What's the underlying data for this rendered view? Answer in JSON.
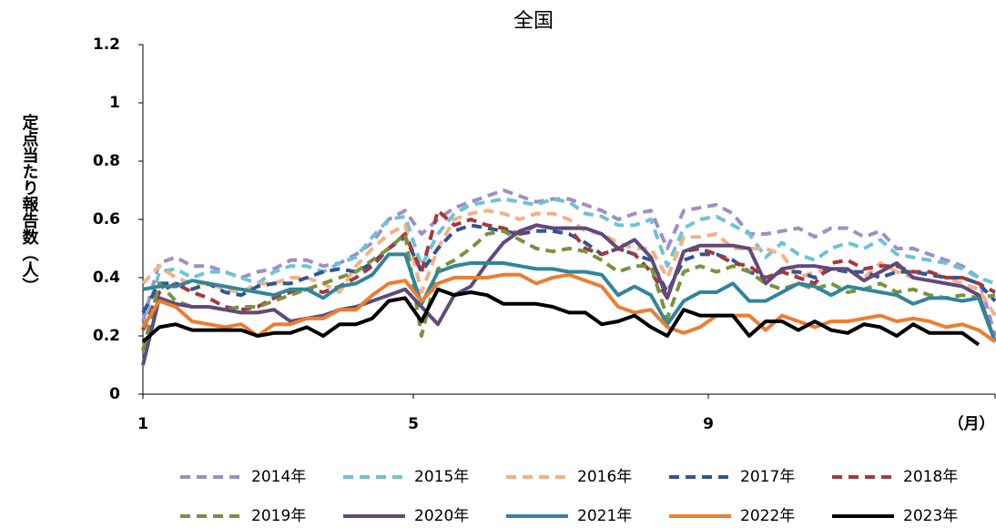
{
  "chart_data": {
    "type": "line",
    "title": "全国",
    "y_label": "定点当たり報告数（人）",
    "x": [
      1,
      2,
      3,
      4,
      5,
      6,
      7,
      8,
      9,
      10,
      11,
      12,
      13,
      14,
      15,
      16,
      17,
      18,
      19,
      20,
      21,
      22,
      23,
      24,
      25,
      26,
      27,
      28,
      29,
      30,
      31,
      32,
      33,
      34,
      35,
      36,
      37,
      38,
      39,
      40,
      41,
      42,
      43,
      44,
      45,
      46,
      47,
      48,
      49,
      50,
      51,
      52,
      53
    ],
    "xlim": [
      1,
      53
    ],
    "xticks": [
      {
        "value": 1,
        "label": "1"
      },
      {
        "value": 17.5,
        "label": "5"
      },
      {
        "value": 35.5,
        "label": "9"
      },
      {
        "value": 53,
        "label": "（月）"
      }
    ],
    "ylim": [
      0,
      1.2
    ],
    "yticks": [
      0,
      0.2,
      0.4,
      0.6,
      0.8,
      1,
      1.2
    ],
    "grid": false,
    "series": [
      {
        "name": "2014年",
        "color": "#9e8fc4",
        "dashed": true,
        "values": [
          0.25,
          0.45,
          0.47,
          0.44,
          0.44,
          0.42,
          0.4,
          0.42,
          0.43,
          0.46,
          0.46,
          0.44,
          0.45,
          0.48,
          0.52,
          0.6,
          0.63,
          0.55,
          0.6,
          0.64,
          0.66,
          0.68,
          0.7,
          0.68,
          0.66,
          0.67,
          0.67,
          0.65,
          0.63,
          0.6,
          0.62,
          0.63,
          0.5,
          0.63,
          0.64,
          0.65,
          0.62,
          0.55,
          0.55,
          0.56,
          0.57,
          0.54,
          0.57,
          0.57,
          0.54,
          0.56,
          0.5,
          0.5,
          0.48,
          0.46,
          0.44,
          0.4,
          0.2
        ]
      },
      {
        "name": "2015年",
        "color": "#6cc3d6",
        "dashed": true,
        "values": [
          0.22,
          0.42,
          0.43,
          0.4,
          0.42,
          0.42,
          0.4,
          0.38,
          0.42,
          0.44,
          0.44,
          0.42,
          0.45,
          0.47,
          0.54,
          0.6,
          0.61,
          0.44,
          0.55,
          0.62,
          0.65,
          0.66,
          0.67,
          0.66,
          0.65,
          0.67,
          0.66,
          0.62,
          0.61,
          0.58,
          0.58,
          0.6,
          0.44,
          0.57,
          0.6,
          0.61,
          0.58,
          0.55,
          0.47,
          0.52,
          0.48,
          0.46,
          0.5,
          0.52,
          0.5,
          0.53,
          0.48,
          0.47,
          0.46,
          0.45,
          0.43,
          0.4,
          0.38
        ]
      },
      {
        "name": "2016年",
        "color": "#f4b183",
        "dashed": true,
        "values": [
          0.38,
          0.44,
          0.4,
          0.38,
          0.38,
          0.36,
          0.35,
          0.38,
          0.38,
          0.4,
          0.4,
          0.38,
          0.35,
          0.44,
          0.5,
          0.55,
          0.58,
          0.35,
          0.5,
          0.6,
          0.62,
          0.63,
          0.62,
          0.6,
          0.62,
          0.62,
          0.6,
          0.56,
          0.55,
          0.52,
          0.5,
          0.5,
          0.4,
          0.54,
          0.54,
          0.55,
          0.5,
          0.5,
          0.5,
          0.48,
          0.4,
          0.42,
          0.43,
          0.43,
          0.4,
          0.45,
          0.42,
          0.4,
          0.42,
          0.4,
          0.38,
          0.36,
          0.27
        ]
      },
      {
        "name": "2017年",
        "color": "#2f5597",
        "dashed": true,
        "values": [
          0.28,
          0.38,
          0.38,
          0.36,
          0.38,
          0.35,
          0.34,
          0.37,
          0.38,
          0.38,
          0.4,
          0.42,
          0.43,
          0.42,
          0.45,
          0.5,
          0.54,
          0.42,
          0.5,
          0.56,
          0.58,
          0.57,
          0.56,
          0.55,
          0.56,
          0.56,
          0.55,
          0.52,
          0.48,
          0.5,
          0.48,
          0.46,
          0.35,
          0.46,
          0.48,
          0.48,
          0.46,
          0.42,
          0.4,
          0.42,
          0.42,
          0.4,
          0.43,
          0.42,
          0.42,
          0.4,
          0.42,
          0.42,
          0.41,
          0.4,
          0.4,
          0.38,
          0.32
        ]
      },
      {
        "name": "2018年",
        "color": "#a5383b",
        "dashed": true,
        "values": [
          0.22,
          0.35,
          0.38,
          0.35,
          0.33,
          0.3,
          0.29,
          0.3,
          0.33,
          0.35,
          0.36,
          0.35,
          0.37,
          0.4,
          0.44,
          0.5,
          0.55,
          0.42,
          0.63,
          0.58,
          0.6,
          0.58,
          0.57,
          0.55,
          0.58,
          0.57,
          0.57,
          0.5,
          0.48,
          0.5,
          0.48,
          0.42,
          0.33,
          0.49,
          0.5,
          0.48,
          0.45,
          0.44,
          0.4,
          0.42,
          0.4,
          0.38,
          0.45,
          0.46,
          0.43,
          0.44,
          0.44,
          0.42,
          0.42,
          0.4,
          0.4,
          0.38,
          0.35
        ]
      },
      {
        "name": "2019年",
        "color": "#77933c",
        "dashed": true,
        "values": [
          0.15,
          0.38,
          0.32,
          0.3,
          0.3,
          0.29,
          0.3,
          0.3,
          0.32,
          0.34,
          0.36,
          0.38,
          0.4,
          0.42,
          0.46,
          0.5,
          0.55,
          0.2,
          0.43,
          0.46,
          0.5,
          0.55,
          0.56,
          0.53,
          0.5,
          0.49,
          0.5,
          0.49,
          0.46,
          0.42,
          0.44,
          0.44,
          0.26,
          0.42,
          0.44,
          0.42,
          0.44,
          0.42,
          0.38,
          0.36,
          0.38,
          0.36,
          0.38,
          0.35,
          0.36,
          0.38,
          0.35,
          0.36,
          0.34,
          0.33,
          0.34,
          0.33,
          0.34
        ]
      },
      {
        "name": "2020年",
        "color": "#604a7b",
        "dashed": false,
        "values": [
          0.1,
          0.33,
          0.31,
          0.3,
          0.3,
          0.29,
          0.28,
          0.28,
          0.29,
          0.25,
          0.26,
          0.27,
          0.29,
          0.3,
          0.32,
          0.34,
          0.36,
          0.3,
          0.24,
          0.34,
          0.37,
          0.45,
          0.52,
          0.56,
          0.58,
          0.57,
          0.57,
          0.57,
          0.55,
          0.5,
          0.53,
          0.47,
          0.33,
          0.49,
          0.51,
          0.51,
          0.51,
          0.5,
          0.38,
          0.43,
          0.44,
          0.44,
          0.43,
          0.43,
          0.39,
          0.42,
          0.45,
          0.4,
          0.39,
          0.38,
          0.37,
          0.34,
          0.18
        ]
      },
      {
        "name": "2021年",
        "color": "#31859c",
        "dashed": false,
        "values": [
          0.36,
          0.37,
          0.37,
          0.39,
          0.38,
          0.37,
          0.36,
          0.35,
          0.34,
          0.36,
          0.36,
          0.33,
          0.37,
          0.38,
          0.41,
          0.48,
          0.48,
          0.31,
          0.42,
          0.44,
          0.45,
          0.45,
          0.45,
          0.44,
          0.43,
          0.43,
          0.42,
          0.42,
          0.41,
          0.34,
          0.37,
          0.34,
          0.24,
          0.32,
          0.35,
          0.35,
          0.38,
          0.32,
          0.32,
          0.35,
          0.38,
          0.37,
          0.34,
          0.37,
          0.36,
          0.35,
          0.34,
          0.31,
          0.33,
          0.33,
          0.32,
          0.33,
          0.18
        ]
      },
      {
        "name": "2022年",
        "color": "#ed7d31",
        "dashed": false,
        "values": [
          0.23,
          0.32,
          0.3,
          0.25,
          0.24,
          0.23,
          0.24,
          0.2,
          0.24,
          0.24,
          0.26,
          0.26,
          0.29,
          0.29,
          0.34,
          0.38,
          0.39,
          0.32,
          0.38,
          0.4,
          0.4,
          0.4,
          0.41,
          0.41,
          0.38,
          0.4,
          0.41,
          0.39,
          0.37,
          0.3,
          0.28,
          0.29,
          0.23,
          0.21,
          0.23,
          0.27,
          0.27,
          0.27,
          0.22,
          0.27,
          0.25,
          0.23,
          0.25,
          0.25,
          0.26,
          0.27,
          0.25,
          0.26,
          0.25,
          0.23,
          0.24,
          0.22,
          0.18
        ]
      },
      {
        "name": "2023年",
        "color": "#000000",
        "dashed": false,
        "values": [
          0.18,
          0.23,
          0.24,
          0.22,
          0.22,
          0.22,
          0.22,
          0.2,
          0.21,
          0.21,
          0.23,
          0.2,
          0.24,
          0.24,
          0.26,
          0.32,
          0.33,
          0.25,
          0.36,
          0.34,
          0.35,
          0.34,
          0.31,
          0.31,
          0.31,
          0.3,
          0.28,
          0.28,
          0.24,
          0.25,
          0.27,
          0.23,
          0.2,
          0.29,
          0.27,
          0.27,
          0.27,
          0.2,
          0.25,
          0.25,
          0.22,
          0.25,
          0.22,
          0.21,
          0.24,
          0.23,
          0.2,
          0.24,
          0.21,
          0.21,
          0.21,
          0.17,
          null
        ]
      }
    ]
  }
}
